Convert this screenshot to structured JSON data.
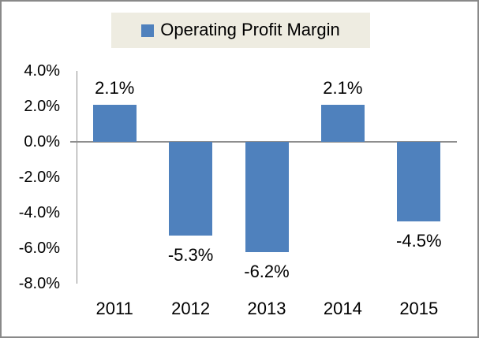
{
  "legend": {
    "label": "Operating Profit Margin",
    "position": "top",
    "background": "#EEECE1",
    "marker_color": "#4F81BD"
  },
  "colors": {
    "bar": "#4F81BD",
    "axis": "#8E8E8E",
    "frame_border": "#898989",
    "text": "#000000",
    "plot_background": "#FFFFFF"
  },
  "chart_data": {
    "type": "bar",
    "title": "",
    "xlabel": "",
    "ylabel": "",
    "categories": [
      "2011",
      "2012",
      "2013",
      "2014",
      "2015"
    ],
    "series": [
      {
        "name": "Operating Profit Margin",
        "values": [
          2.1,
          -5.3,
          -6.2,
          2.1,
          -4.5
        ]
      }
    ],
    "data_labels": [
      "2.1%",
      "-5.3%",
      "-6.2%",
      "2.1%",
      "-4.5%"
    ],
    "y_ticks": [
      {
        "value": 4,
        "label": "4.0%"
      },
      {
        "value": 2,
        "label": "2.0%"
      },
      {
        "value": 0,
        "label": "0.0%"
      },
      {
        "value": -2,
        "label": "-2.0%"
      },
      {
        "value": -4,
        "label": "-4.0%"
      },
      {
        "value": -6,
        "label": "-6.0%"
      },
      {
        "value": -8,
        "label": "-8.0%"
      }
    ],
    "ylim": [
      -8,
      4
    ],
    "grid": false,
    "legend_position": "top"
  }
}
